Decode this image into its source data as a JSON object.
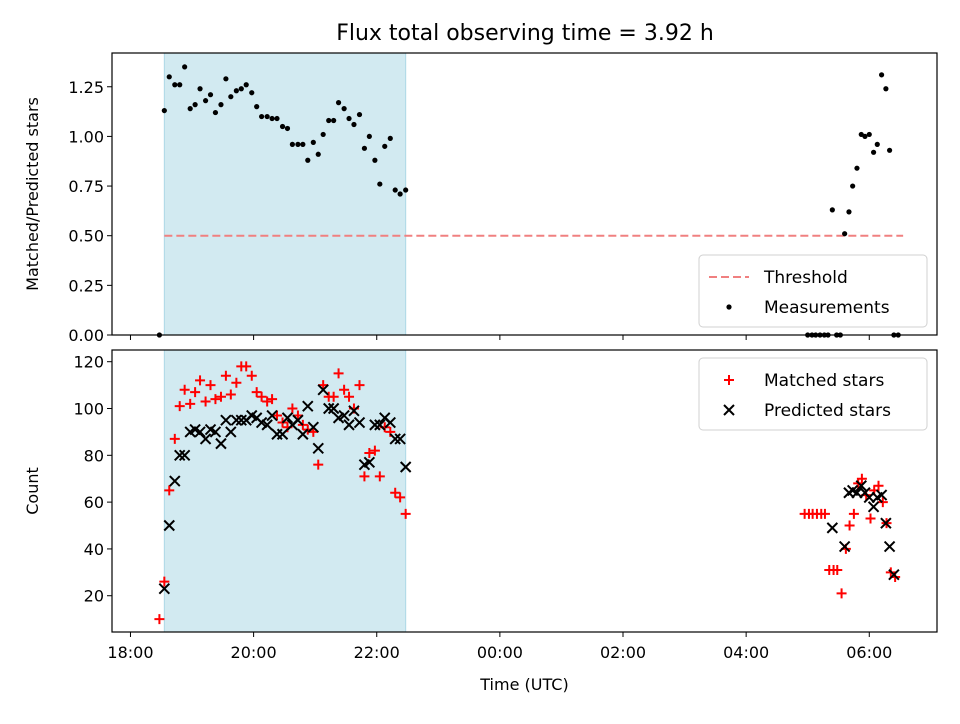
{
  "figure": {
    "title": "Flux total observing time = 3.92 h"
  },
  "chart_data": [
    {
      "type": "scatter",
      "ylabel": "Matched/Predicted stars",
      "xlabel": "",
      "xlim": [
        17.7,
        31.1
      ],
      "ylim": [
        0.0,
        1.42
      ],
      "yticks": [
        "0.00",
        "0.25",
        "0.50",
        "0.75",
        "1.00",
        "1.25"
      ],
      "ytick_values": [
        0.0,
        0.25,
        0.5,
        0.75,
        1.0,
        1.25
      ],
      "shaded_span": [
        18.55,
        22.47
      ],
      "shaded_color": "#add8e6",
      "legend_position": "lower right",
      "threshold": {
        "name": "Threshold",
        "value": 0.5,
        "x": [
          18.55,
          30.55
        ],
        "color": "#f08080"
      },
      "series": [
        {
          "name": "Measurements",
          "color": "#000000",
          "marker": "dot",
          "x": [
            18.47,
            18.55,
            18.63,
            18.72,
            18.8,
            18.88,
            18.97,
            19.05,
            19.13,
            19.22,
            19.3,
            19.38,
            19.47,
            19.55,
            19.63,
            19.72,
            19.8,
            19.88,
            19.97,
            20.05,
            20.13,
            20.22,
            20.3,
            20.38,
            20.47,
            20.55,
            20.63,
            20.72,
            20.8,
            20.88,
            20.97,
            21.05,
            21.13,
            21.22,
            21.3,
            21.38,
            21.47,
            21.55,
            21.63,
            21.72,
            21.8,
            21.88,
            21.97,
            22.05,
            22.13,
            22.22,
            22.3,
            22.38,
            22.47,
            29.0,
            29.07,
            29.13,
            29.2,
            29.27,
            29.33,
            29.4,
            29.47,
            29.53,
            29.6,
            29.67,
            29.73,
            29.8,
            29.87,
            29.93,
            30.0,
            30.07,
            30.13,
            30.2,
            30.27,
            30.33,
            30.4,
            30.47
          ],
          "y": [
            0.0,
            1.13,
            1.3,
            1.26,
            1.26,
            1.35,
            1.14,
            1.16,
            1.24,
            1.18,
            1.21,
            1.12,
            1.16,
            1.29,
            1.2,
            1.23,
            1.24,
            1.26,
            1.22,
            1.15,
            1.1,
            1.1,
            1.09,
            1.09,
            1.05,
            1.04,
            0.96,
            0.96,
            0.96,
            0.88,
            0.97,
            0.91,
            1.01,
            1.08,
            1.08,
            1.17,
            1.14,
            1.09,
            1.06,
            1.11,
            0.94,
            1.0,
            0.88,
            0.76,
            0.95,
            0.99,
            0.73,
            0.71,
            0.73,
            0.0,
            0.0,
            0.0,
            0.0,
            0.0,
            0.0,
            0.63,
            0.0,
            0.0,
            0.51,
            0.62,
            0.75,
            0.84,
            1.01,
            1.0,
            1.01,
            0.92,
            0.96,
            1.31,
            1.24,
            0.93,
            0.0,
            0.0
          ]
        }
      ]
    },
    {
      "type": "scatter",
      "ylabel": "Count",
      "xlabel": "Time (UTC)",
      "xlim": [
        17.7,
        31.1
      ],
      "ylim": [
        4.5,
        125.0
      ],
      "yticks": [
        "20",
        "40",
        "60",
        "80",
        "100",
        "120"
      ],
      "ytick_values": [
        20,
        40,
        60,
        80,
        100,
        120
      ],
      "xticks": [
        "18:00",
        "20:00",
        "22:00",
        "00:00",
        "02:00",
        "04:00",
        "06:00"
      ],
      "xtick_values": [
        18,
        20,
        22,
        24,
        26,
        28,
        30
      ],
      "shaded_span": [
        18.55,
        22.47
      ],
      "shaded_color": "#add8e6",
      "legend_position": "upper right",
      "series": [
        {
          "name": "Matched stars",
          "color": "#ff0000",
          "marker": "plus",
          "x": [
            18.47,
            18.55,
            18.63,
            18.72,
            18.8,
            18.88,
            18.97,
            19.05,
            19.13,
            19.22,
            19.3,
            19.38,
            19.47,
            19.55,
            19.63,
            19.72,
            19.8,
            19.88,
            19.97,
            20.05,
            20.13,
            20.22,
            20.3,
            20.38,
            20.47,
            20.55,
            20.63,
            20.72,
            20.8,
            20.88,
            20.97,
            21.05,
            21.13,
            21.22,
            21.3,
            21.38,
            21.47,
            21.55,
            21.63,
            21.72,
            21.8,
            21.88,
            21.97,
            22.05,
            22.13,
            22.22,
            22.3,
            22.38,
            22.47,
            28.95,
            29.02,
            29.08,
            29.15,
            29.22,
            29.28,
            29.35,
            29.42,
            29.48,
            29.55,
            29.62,
            29.68,
            29.75,
            29.82,
            29.88,
            29.95,
            30.02,
            30.08,
            30.15,
            30.22,
            30.28,
            30.35,
            30.42
          ],
          "y": [
            10,
            26,
            65,
            87,
            101,
            108,
            102,
            107,
            112,
            103,
            110,
            104,
            105,
            114,
            106,
            111,
            118,
            118,
            114,
            107,
            105,
            103,
            104,
            97,
            94,
            92,
            100,
            97,
            93,
            91,
            90,
            76,
            110,
            105,
            105,
            115,
            108,
            105,
            100,
            110,
            71,
            81,
            82,
            71,
            92,
            90,
            64,
            62,
            55,
            55,
            55,
            55,
            55,
            55,
            55,
            31,
            31,
            31,
            21,
            40,
            50,
            55,
            68,
            70,
            63,
            53,
            65,
            67,
            60,
            51,
            30,
            28
          ]
        },
        {
          "name": "Predicted stars",
          "color": "#000000",
          "marker": "x",
          "x": [
            18.55,
            18.63,
            18.72,
            18.8,
            18.88,
            18.97,
            19.05,
            19.13,
            19.22,
            19.3,
            19.38,
            19.47,
            19.55,
            19.63,
            19.72,
            19.8,
            19.88,
            19.97,
            20.05,
            20.13,
            20.22,
            20.3,
            20.38,
            20.47,
            20.55,
            20.63,
            20.72,
            20.8,
            20.88,
            20.97,
            21.05,
            21.13,
            21.22,
            21.3,
            21.38,
            21.47,
            21.55,
            21.63,
            21.72,
            21.8,
            21.88,
            21.97,
            22.05,
            22.13,
            22.22,
            22.3,
            22.38,
            22.47,
            29.4,
            29.6,
            29.67,
            29.73,
            29.8,
            29.87,
            29.93,
            30.0,
            30.07,
            30.13,
            30.2,
            30.27,
            30.33,
            30.4
          ],
          "y": [
            23,
            50,
            69,
            80,
            80,
            90,
            91,
            90,
            87,
            91,
            90,
            85,
            95,
            90,
            95,
            95,
            95,
            97,
            96,
            94,
            93,
            97,
            89,
            89,
            96,
            93,
            95,
            89,
            101,
            92,
            83,
            108,
            100,
            100,
            96,
            97,
            93,
            99,
            94,
            76,
            77,
            93,
            93,
            96,
            94,
            87,
            87,
            75,
            49,
            41,
            64,
            65,
            64,
            67,
            64,
            62,
            58,
            62,
            63,
            51,
            41,
            29
          ]
        }
      ]
    }
  ]
}
